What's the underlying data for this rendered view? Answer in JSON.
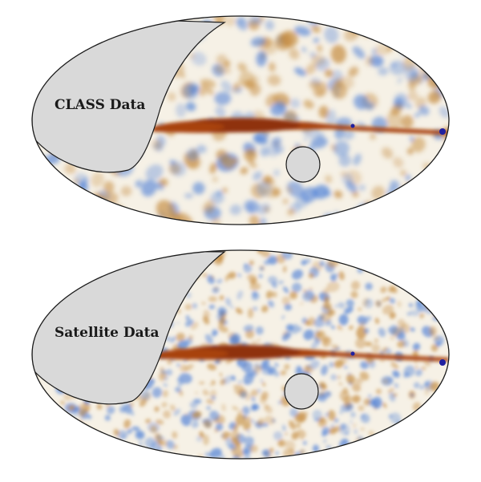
{
  "maps": [
    {
      "label": "CLASS Data",
      "colors": {
        "background": "#f6f1e6",
        "mask": "#d9d9d9",
        "outline": "#1a1a1a",
        "galactic_plane": "#a8420f",
        "warm": "#c48a3c",
        "cool": "#4d7fd6",
        "source": "#2020a0"
      }
    },
    {
      "label": "Satellite Data",
      "colors": {
        "background": "#f6f1e6",
        "mask": "#d9d9d9",
        "outline": "#1a1a1a",
        "galactic_plane": "#a8420f",
        "warm": "#c48a3c",
        "cool": "#4d7fd6",
        "source": "#2020a0"
      }
    }
  ]
}
